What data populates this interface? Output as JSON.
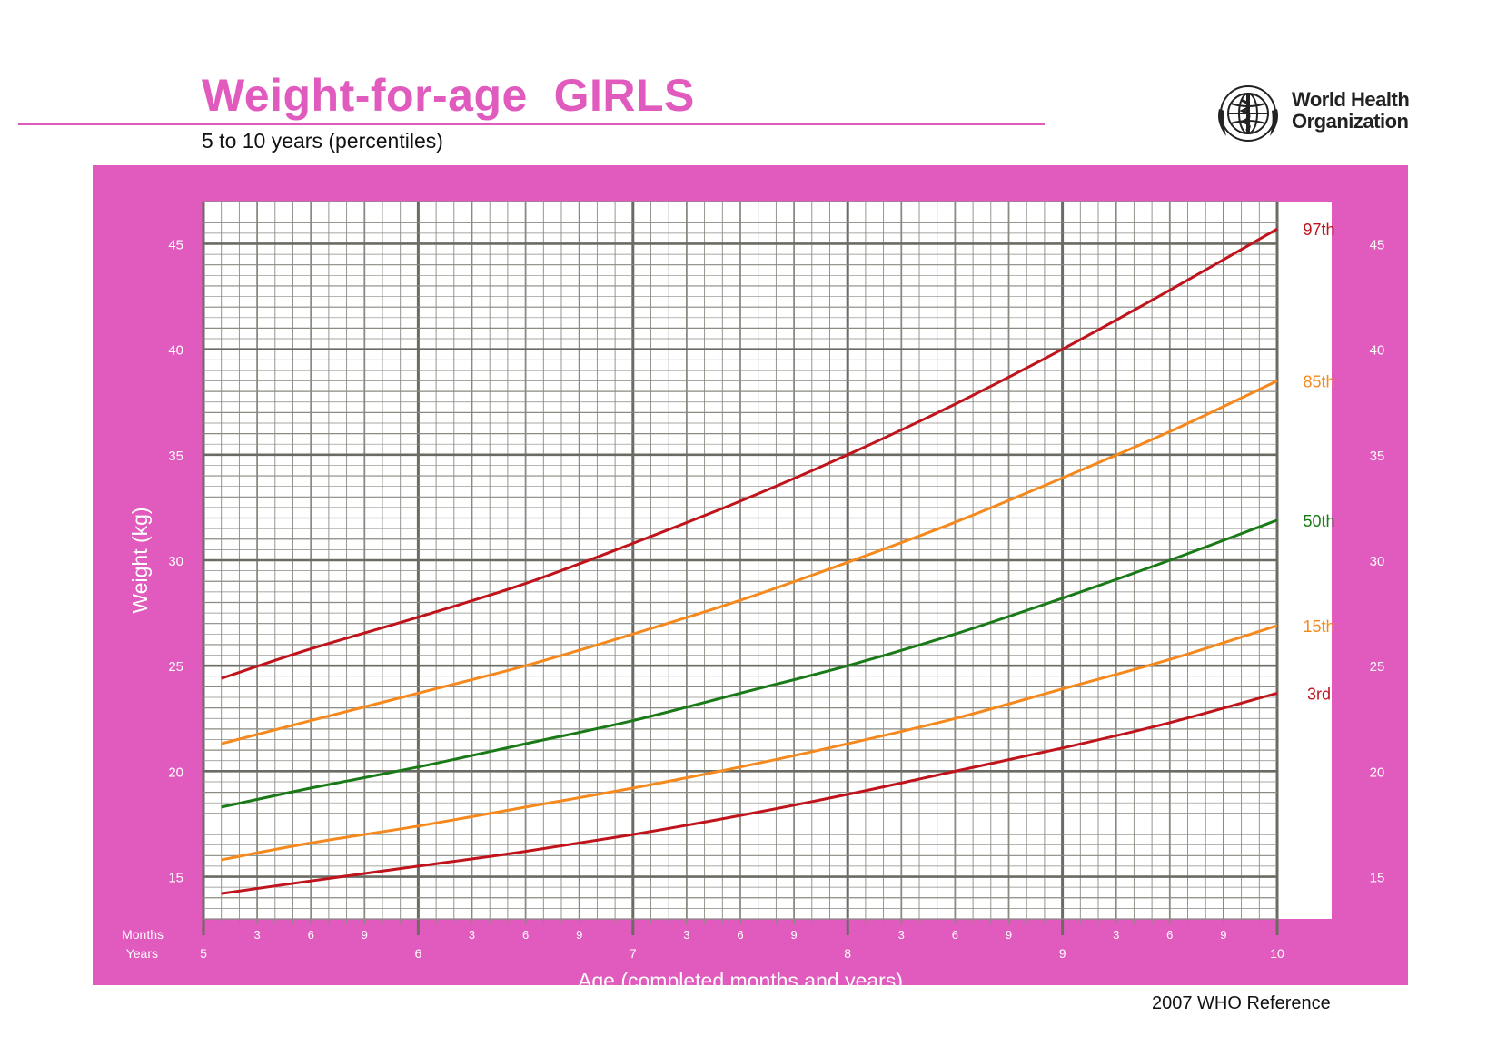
{
  "header": {
    "title": "Weight-for-age  GIRLS",
    "subtitle": "5 to 10 years (percentiles)",
    "logo_text_line1": "World Health",
    "logo_text_line2": "Organization",
    "logo_icon": "who-emblem-icon"
  },
  "footer": {
    "text": "2007 WHO Reference"
  },
  "colors": {
    "brand_pink": "#e05bbd",
    "grid_major": "#6b6b63",
    "grid_minor": "#8a8a82",
    "plot_bg": "#ffffff",
    "axis_text": "#ffffff"
  },
  "chart_data": {
    "type": "line",
    "title": "Weight-for-age  GIRLS",
    "subtitle": "5 to 10 years (percentiles)",
    "xlabel": "Age (completed months and years)",
    "ylabel": "Weight (kg)",
    "x_unit": "years",
    "xlim": [
      5,
      10
    ],
    "ylim": [
      13,
      47
    ],
    "grid": true,
    "y_ticks": [
      15,
      20,
      25,
      30,
      35,
      40,
      45
    ],
    "x_row_labels": {
      "months": "Months",
      "years": "Years"
    },
    "year_ticks": [
      "5",
      "6",
      "7",
      "8",
      "9",
      "10"
    ],
    "month_ticks": [
      "3",
      "6",
      "9"
    ],
    "series": [
      {
        "name": "97th",
        "color": "#c0141c",
        "x": [
          5.0833,
          5.5,
          6,
          6.5,
          7,
          7.5,
          8,
          8.5,
          9,
          9.5,
          10
        ],
        "y": [
          24.4,
          25.8,
          27.3,
          28.9,
          30.8,
          32.8,
          35.0,
          37.4,
          40.0,
          42.8,
          45.7
        ]
      },
      {
        "name": "85th",
        "color": "#f5891e",
        "x": [
          5.0833,
          5.5,
          6,
          6.5,
          7,
          7.5,
          8,
          8.5,
          9,
          9.5,
          10
        ],
        "y": [
          21.3,
          22.4,
          23.7,
          25.0,
          26.5,
          28.1,
          29.9,
          31.8,
          33.9,
          36.1,
          38.5
        ]
      },
      {
        "name": "50th",
        "color": "#1a7a18",
        "x": [
          5.0833,
          5.5,
          6,
          6.5,
          7,
          7.5,
          8,
          8.5,
          9,
          9.5,
          10
        ],
        "y": [
          18.3,
          19.2,
          20.2,
          21.3,
          22.4,
          23.7,
          25.0,
          26.5,
          28.2,
          30.0,
          31.9
        ]
      },
      {
        "name": "15th",
        "color": "#f5891e",
        "x": [
          5.0833,
          5.5,
          6,
          6.5,
          7,
          7.5,
          8,
          8.5,
          9,
          9.5,
          10
        ],
        "y": [
          15.8,
          16.6,
          17.4,
          18.3,
          19.2,
          20.2,
          21.3,
          22.5,
          23.9,
          25.3,
          26.9
        ]
      },
      {
        "name": "3rd",
        "color": "#c0141c",
        "x": [
          5.0833,
          5.5,
          6,
          6.5,
          7,
          7.5,
          8,
          8.5,
          9,
          9.5,
          10
        ],
        "y": [
          14.2,
          14.8,
          15.5,
          16.2,
          17.0,
          17.9,
          18.9,
          20.0,
          21.1,
          22.3,
          23.7
        ]
      }
    ]
  }
}
